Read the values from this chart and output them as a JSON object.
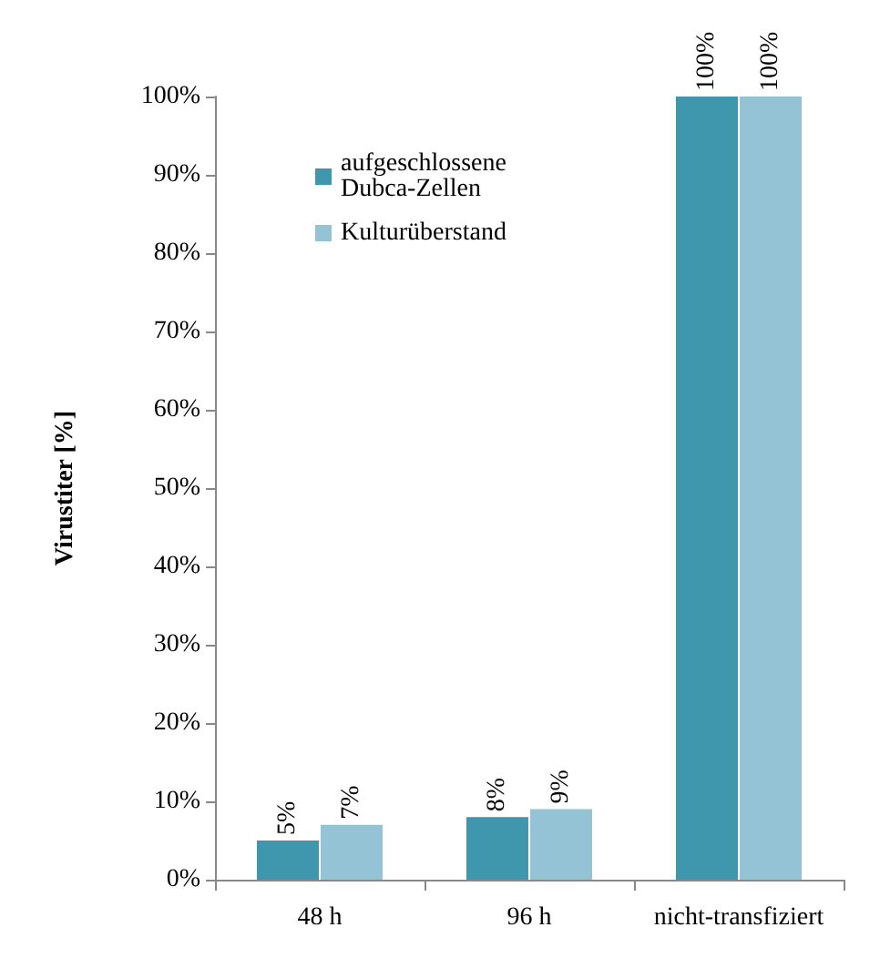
{
  "chart_data": {
    "type": "bar",
    "ylabel": "Virustiter [%]",
    "categories": [
      "48 h",
      "96 h",
      "nicht-transfiziert"
    ],
    "series": [
      {
        "name": "aufgeschlossene Dubca-Zellen",
        "color": "#3f97ad",
        "values": [
          5,
          8,
          100
        ],
        "value_labels": [
          "5%",
          "8%",
          "100%"
        ]
      },
      {
        "name": "Kulturüberstand",
        "color": "#93c3d4",
        "values": [
          7,
          9,
          100
        ],
        "value_labels": [
          "7%",
          "9%",
          "100%"
        ]
      }
    ],
    "ylim": [
      0,
      100
    ],
    "yticks": [
      {
        "value": 0,
        "label": "0%"
      },
      {
        "value": 10,
        "label": "10%"
      },
      {
        "value": 20,
        "label": "20%"
      },
      {
        "value": 30,
        "label": "30%"
      },
      {
        "value": 40,
        "label": "40%"
      },
      {
        "value": 50,
        "label": "50%"
      },
      {
        "value": 60,
        "label": "60%"
      },
      {
        "value": 70,
        "label": "70%"
      },
      {
        "value": 80,
        "label": "80%"
      },
      {
        "value": 90,
        "label": "90%"
      },
      {
        "value": 100,
        "label": "100%"
      }
    ],
    "grid": false,
    "legend": "top left"
  }
}
